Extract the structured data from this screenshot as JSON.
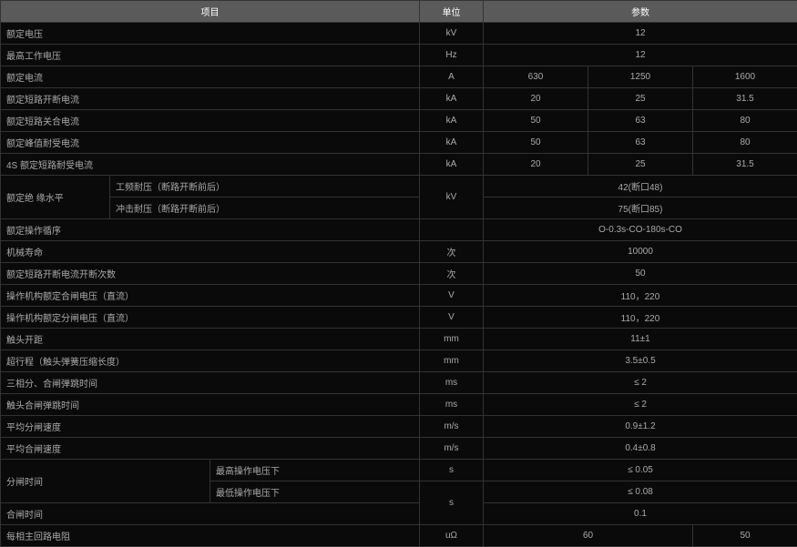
{
  "header": {
    "item": "项目",
    "unit": "单位",
    "param": "参数"
  },
  "rows": {
    "r1": {
      "label": "额定电压",
      "unit": "kV",
      "val": "12"
    },
    "r2": {
      "label": "最高工作电压",
      "unit": "Hz",
      "val": "12"
    },
    "r3": {
      "label": "额定电流",
      "unit": "A",
      "v1": "630",
      "v2": "1250",
      "v3": "1600"
    },
    "r4": {
      "label": "额定短路开断电流",
      "unit": "kA",
      "v1": "20",
      "v2": "25",
      "v3": "31.5"
    },
    "r5": {
      "label": "额定短路关合电流",
      "unit": "kA",
      "v1": "50",
      "v2": "63",
      "v3": "80"
    },
    "r6": {
      "label": "额定峰值耐受电流",
      "unit": "kA",
      "v1": "50",
      "v2": "63",
      "v3": "80"
    },
    "r7": {
      "label": "4S 额定短路耐受电流",
      "unit": "kA",
      "v1": "20",
      "v2": "25",
      "v3": "31.5"
    },
    "r8": {
      "group": "额定绝\n缘水平",
      "sub": "工频耐压（断路开断前后）",
      "unit": "kV",
      "val": "42(断口48)"
    },
    "r9": {
      "sub": "冲击耐压（断路开断前后）",
      "val": "75(断口85)"
    },
    "r10": {
      "label": "额定操作循序",
      "unit": "",
      "val": "O-0.3s-CO-180s-CO"
    },
    "r11": {
      "label": "机械寿命",
      "unit": "次",
      "val": "10000"
    },
    "r12": {
      "label": "额定短路开断电流开断次数",
      "unit": "次",
      "val": "50"
    },
    "r13": {
      "label": "操作机构额定合闸电压（直流）",
      "unit": "V",
      "val": "110，220"
    },
    "r14": {
      "label": "操作机构额定分闸电压（直流）",
      "unit": "V",
      "val": "110，220"
    },
    "r15": {
      "label": "触头开距",
      "unit": "mm",
      "val": "11±1"
    },
    "r16": {
      "label": "超行程（触头弹簧压缩长度）",
      "unit": "mm",
      "val": "3.5±0.5"
    },
    "r17": {
      "label": "三相分、合闸弹跳时间",
      "unit": "ms",
      "val": "≤ 2"
    },
    "r18": {
      "label": "触头合闸弹跳时间",
      "unit": "ms",
      "val": "≤ 2"
    },
    "r19": {
      "label": "平均分闸速度",
      "unit": "m/s",
      "val": "0.9±1.2"
    },
    "r20": {
      "label": "平均合闸速度",
      "unit": "m/s",
      "val": "0.4±0.8"
    },
    "r21": {
      "group": "分闸时间",
      "sub": "最高操作电压下",
      "unit": "s",
      "val": "≤ 0.05"
    },
    "r22": {
      "sub": "最低操作电压下",
      "val": "≤ 0.08"
    },
    "r23": {
      "label": "合闸时间",
      "unit": "s",
      "val": "0.1"
    },
    "r24": {
      "label": "每相主回路电阻",
      "unit": "uΩ",
      "v1": "60",
      "v2": "50"
    }
  }
}
